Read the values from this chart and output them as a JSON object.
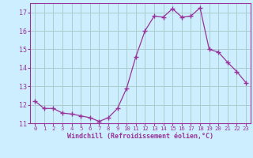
{
  "x": [
    0,
    1,
    2,
    3,
    4,
    5,
    6,
    7,
    8,
    9,
    10,
    11,
    12,
    13,
    14,
    15,
    16,
    17,
    18,
    19,
    20,
    21,
    22,
    23
  ],
  "y": [
    12.2,
    11.8,
    11.8,
    11.55,
    11.5,
    11.4,
    11.3,
    11.1,
    11.3,
    11.8,
    12.9,
    14.6,
    16.0,
    16.8,
    16.75,
    17.2,
    16.75,
    16.8,
    17.25,
    15.0,
    14.85,
    14.3,
    13.8,
    13.2
  ],
  "line_color": "#993399",
  "marker": "+",
  "marker_size": 4,
  "bg_color": "#cceeff",
  "grid_color": "#aacccc",
  "xlabel": "Windchill (Refroidissement éolien,°C)",
  "xlabel_color": "#993399",
  "tick_color": "#993399",
  "spine_color": "#993399",
  "ylim": [
    11.0,
    17.5
  ],
  "xlim": [
    -0.5,
    23.5
  ],
  "yticks": [
    11,
    12,
    13,
    14,
    15,
    16,
    17
  ],
  "xticks": [
    0,
    1,
    2,
    3,
    4,
    5,
    6,
    7,
    8,
    9,
    10,
    11,
    12,
    13,
    14,
    15,
    16,
    17,
    18,
    19,
    20,
    21,
    22,
    23
  ]
}
